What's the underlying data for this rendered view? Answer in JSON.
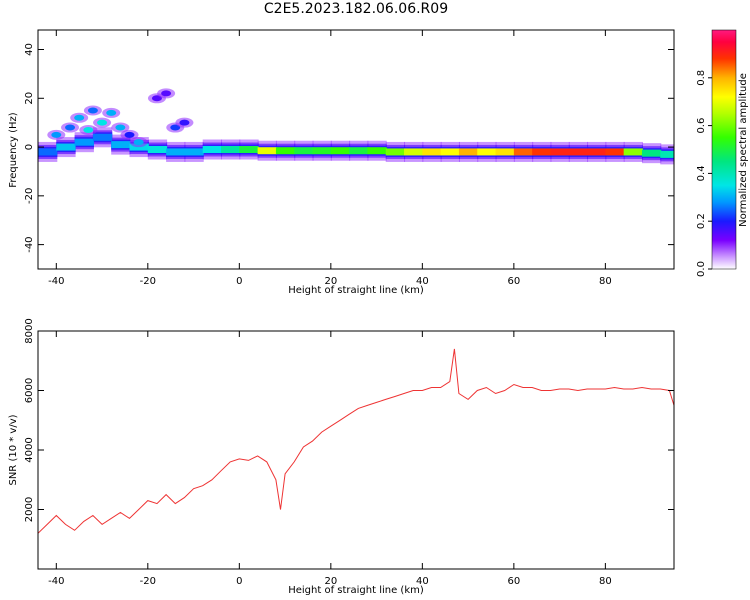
{
  "title": "C2E5.2023.182.06.06.R09",
  "chart_data": [
    {
      "type": "heatmap",
      "xlabel": "Height of straight line (km)",
      "ylabel": "Frequency (Hz)",
      "xlim": [
        -44,
        95
      ],
      "ylim": [
        -50,
        48
      ],
      "xticks": [
        -40,
        -20,
        0,
        20,
        40,
        60,
        80
      ],
      "yticks": [
        -40,
        -20,
        0,
        20,
        40
      ],
      "colorbar": {
        "label": "Normalized spectral amplitude",
        "ticks": [
          0.0,
          0.2,
          0.4,
          0.6,
          0.8
        ],
        "range": [
          0,
          1
        ],
        "colormap": "gist_ncar-like (white, violet, blue, cyan, green, yellow, orange, red, pink)"
      },
      "ridge": [
        {
          "x": -44,
          "freq": -2,
          "amp": 0.25
        },
        {
          "x": -40,
          "freq": 0,
          "amp": 0.32
        },
        {
          "x": -36,
          "freq": 2,
          "amp": 0.28
        },
        {
          "x": -32,
          "freq": 4,
          "amp": 0.26
        },
        {
          "x": -28,
          "freq": 1,
          "amp": 0.3
        },
        {
          "x": -24,
          "freq": 0,
          "amp": 0.34
        },
        {
          "x": -20,
          "freq": -1,
          "amp": 0.36
        },
        {
          "x": -16,
          "freq": -2,
          "amp": 0.3
        },
        {
          "x": -12,
          "freq": -2,
          "amp": 0.3
        },
        {
          "x": -8,
          "freq": -1,
          "amp": 0.35
        },
        {
          "x": -4,
          "freq": -1,
          "amp": 0.42
        },
        {
          "x": 0,
          "freq": -1,
          "amp": 0.5
        },
        {
          "x": 4,
          "freq": -1.5,
          "amp": 0.7
        },
        {
          "x": 8,
          "freq": -1.5,
          "amp": 0.55
        },
        {
          "x": 12,
          "freq": -1.5,
          "amp": 0.5
        },
        {
          "x": 16,
          "freq": -1.5,
          "amp": 0.52
        },
        {
          "x": 20,
          "freq": -1.5,
          "amp": 0.55
        },
        {
          "x": 24,
          "freq": -1.5,
          "amp": 0.5
        },
        {
          "x": 28,
          "freq": -1.5,
          "amp": 0.55
        },
        {
          "x": 32,
          "freq": -2,
          "amp": 0.6
        },
        {
          "x": 36,
          "freq": -2,
          "amp": 0.68
        },
        {
          "x": 40,
          "freq": -2,
          "amp": 0.75
        },
        {
          "x": 44,
          "freq": -2,
          "amp": 0.72
        },
        {
          "x": 48,
          "freq": -2,
          "amp": 0.8
        },
        {
          "x": 52,
          "freq": -2,
          "amp": 0.72
        },
        {
          "x": 56,
          "freq": -2,
          "amp": 0.75
        },
        {
          "x": 60,
          "freq": -2,
          "amp": 0.85
        },
        {
          "x": 64,
          "freq": -2,
          "amp": 0.88
        },
        {
          "x": 68,
          "freq": -2,
          "amp": 0.9
        },
        {
          "x": 72,
          "freq": -2,
          "amp": 0.9
        },
        {
          "x": 76,
          "freq": -2,
          "amp": 0.9
        },
        {
          "x": 80,
          "freq": -2,
          "amp": 0.88
        },
        {
          "x": 84,
          "freq": -2,
          "amp": 0.62
        },
        {
          "x": 88,
          "freq": -2.5,
          "amp": 0.45
        },
        {
          "x": 92,
          "freq": -3,
          "amp": 0.4
        },
        {
          "x": 95,
          "freq": -3,
          "amp": 0.38
        }
      ],
      "scatter": [
        {
          "x": -35,
          "freq": 12,
          "amp": 0.3
        },
        {
          "x": -32,
          "freq": 15,
          "amp": 0.25
        },
        {
          "x": -30,
          "freq": 10,
          "amp": 0.35
        },
        {
          "x": -28,
          "freq": 14,
          "amp": 0.3
        },
        {
          "x": -26,
          "freq": 8,
          "amp": 0.3
        },
        {
          "x": -33,
          "freq": 7,
          "amp": 0.35
        },
        {
          "x": -37,
          "freq": 8,
          "amp": 0.25
        },
        {
          "x": -40,
          "freq": 5,
          "amp": 0.28
        },
        {
          "x": -24,
          "freq": 5,
          "amp": 0.2
        },
        {
          "x": -18,
          "freq": 20,
          "amp": 0.15
        },
        {
          "x": -16,
          "freq": 22,
          "amp": 0.15
        },
        {
          "x": -14,
          "freq": 8,
          "amp": 0.22
        },
        {
          "x": -12,
          "freq": 10,
          "amp": 0.18
        },
        {
          "x": -22,
          "freq": 2,
          "amp": 0.3
        }
      ]
    },
    {
      "type": "line",
      "xlabel": "Height of straight line (km)",
      "ylabel": "SNR (10 * v/v)",
      "xlim": [
        -44,
        95
      ],
      "ylim": [
        0,
        8000
      ],
      "xticks": [
        -40,
        -20,
        0,
        20,
        40,
        60,
        80
      ],
      "yticks": [
        2000,
        4000,
        6000,
        8000
      ],
      "color": "#ee3333",
      "series": [
        {
          "x": [
            -44,
            -42,
            -40,
            -38,
            -36,
            -34,
            -32,
            -30,
            -28,
            -26,
            -24,
            -22,
            -20,
            -18,
            -16,
            -14,
            -12,
            -10,
            -8,
            -6,
            -4,
            -2,
            0,
            2,
            4,
            6,
            8,
            9,
            10,
            12,
            14,
            16,
            18,
            20,
            22,
            24,
            26,
            28,
            30,
            32,
            34,
            36,
            38,
            40,
            42,
            44,
            46,
            47,
            48,
            50,
            52,
            54,
            56,
            58,
            60,
            62,
            64,
            66,
            68,
            70,
            72,
            74,
            76,
            78,
            80,
            82,
            84,
            86,
            88,
            90,
            92,
            94,
            95
          ],
          "y": [
            1200,
            1500,
            1800,
            1500,
            1300,
            1600,
            1800,
            1500,
            1700,
            1900,
            1700,
            2000,
            2300,
            2200,
            2500,
            2200,
            2400,
            2700,
            2800,
            3000,
            3300,
            3600,
            3700,
            3650,
            3800,
            3600,
            3000,
            2000,
            3200,
            3600,
            4100,
            4300,
            4600,
            4800,
            5000,
            5200,
            5400,
            5500,
            5600,
            5700,
            5800,
            5900,
            6000,
            6000,
            6100,
            6100,
            6300,
            7400,
            5900,
            5700,
            6000,
            6100,
            5900,
            6000,
            6200,
            6100,
            6100,
            6000,
            6000,
            6050,
            6050,
            6000,
            6050,
            6050,
            6050,
            6100,
            6050,
            6050,
            6100,
            6050,
            6050,
            6000,
            5500
          ]
        }
      ]
    }
  ]
}
